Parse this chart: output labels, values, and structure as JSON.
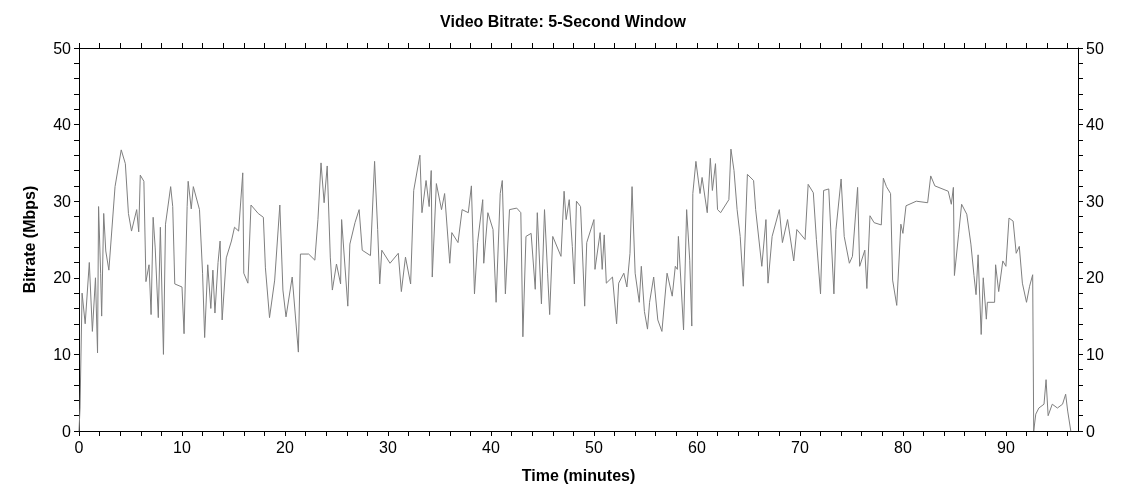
{
  "chart_data": {
    "type": "line",
    "title": "Video Bitrate: 5-Second Window",
    "xlabel": "Time (minutes)",
    "ylabel": "Bitrate (Mbps)",
    "x": [
      0,
      0.1,
      0.3,
      0.6,
      1.0,
      1.3,
      1.6,
      1.8,
      1.9,
      2.1,
      2.2,
      2.4,
      2.6,
      2.9,
      3.5,
      4.1,
      4.5,
      4.8,
      5.1,
      5.6,
      5.8,
      5.95,
      6.3,
      6.5,
      6.8,
      7.0,
      7.2,
      7.4,
      7.7,
      7.9,
      8.2,
      8.4,
      8.9,
      9.1,
      9.3,
      10.0,
      10.2,
      10.5,
      10.6,
      10.9,
      11.1,
      11.7,
      12.0,
      12.2,
      12.5,
      12.8,
      13.0,
      13.2,
      13.5,
      13.7,
      13.9,
      14.3,
      14.8,
      15.1,
      15.5,
      15.9,
      16.0,
      16.4,
      16.7,
      17.4,
      17.9,
      18.1,
      18.5,
      19.0,
      19.5,
      19.8,
      20.1,
      20.7,
      21.3,
      21.5,
      22.3,
      22.9,
      23.2,
      23.5,
      23.8,
      24.1,
      24.4,
      24.6,
      25.0,
      25.4,
      25.5,
      26.1,
      26.3,
      26.8,
      27.2,
      27.5,
      28.3,
      28.7,
      29.0,
      29.2,
      29.4,
      30.2,
      31.0,
      31.3,
      31.7,
      32.2,
      32.5,
      33.1,
      33.3,
      33.7,
      34.0,
      34.2,
      34.3,
      34.7,
      35.2,
      35.5,
      36.0,
      36.2,
      36.8,
      37.2,
      37.8,
      38.1,
      38.4,
      38.7,
      39.2,
      39.3,
      39.7,
      40.2,
      40.5,
      40.9,
      41.1,
      41.4,
      41.8,
      42.5,
      42.9,
      43.1,
      43.4,
      43.9,
      44.3,
      44.5,
      44.9,
      45.2,
      45.5,
      45.7,
      46.0,
      46.8,
      47.1,
      47.3,
      47.6,
      47.9,
      48.1,
      48.3,
      48.7,
      49.1,
      49.3,
      50.0,
      50.1,
      50.6,
      50.8,
      51.0,
      51.2,
      51.8,
      52.2,
      52.4,
      52.9,
      53.2,
      53.5,
      53.7,
      54.0,
      54.4,
      54.6,
      54.9,
      55.2,
      55.4,
      55.8,
      56.2,
      56.6,
      57.1,
      57.6,
      57.9,
      58.1,
      58.2,
      58.7,
      59.0,
      59.3,
      59.5,
      59.6,
      59.9,
      60.3,
      60.5,
      61.0,
      61.3,
      61.5,
      61.8,
      62.0,
      62.3,
      63.1,
      63.3,
      63.6,
      63.9,
      64.2,
      64.5,
      64.9,
      65.5,
      65.7,
      66.3,
      66.7,
      66.9,
      67.3,
      68.0,
      68.3,
      68.8,
      69.4,
      69.7,
      70.5,
      70.8,
      71.3,
      71.6,
      72.0,
      72.3,
      72.8,
      73.3,
      73.5,
      74.0,
      74.3,
      74.8,
      75.1,
      75.6,
      75.8,
      76.3,
      76.5,
      76.8,
      77.2,
      77.9,
      78.1,
      78.4,
      78.8,
      79.0,
      79.4,
      79.8,
      80.0,
      80.3,
      81.3,
      82.4,
      82.7,
      83.1,
      84.4,
      84.7,
      84.9,
      85.0,
      85.4,
      85.7,
      86.2,
      86.6,
      86.9,
      87.1,
      87.3,
      87.6,
      87.8,
      88.1,
      88.2,
      88.9,
      89.0,
      89.3,
      89.7,
      90.0,
      90.3,
      90.7,
      91.0,
      91.3,
      91.6,
      92.0,
      92.3,
      92.6,
      92.7,
      92.9,
      93.2,
      93.7,
      93.9,
      94.1,
      94.5,
      95.0,
      95.5,
      95.8,
      96.0,
      96.3
    ],
    "series": [
      {
        "color": "#7f7f7f",
        "values": [
          0,
          3,
          18,
          14,
          22,
          13,
          20,
          10.2,
          29.3,
          20.6,
          15,
          28.4,
          23.5,
          21,
          31.9,
          36.7,
          34.9,
          28.4,
          26.1,
          28.9,
          26,
          33.4,
          32.6,
          19.5,
          21.7,
          15.2,
          27.9,
          23.9,
          14.8,
          26.6,
          10,
          27,
          31.9,
          29.3,
          19.2,
          18.8,
          12.7,
          29.3,
          32.6,
          29,
          31.9,
          28.9,
          20.6,
          12.2,
          21.7,
          16,
          21,
          15.4,
          22,
          24.8,
          14.5,
          22.6,
          24.8,
          26.6,
          26.1,
          33.7,
          20.6,
          19.3,
          29.5,
          28.4,
          27.9,
          21.3,
          14.8,
          19.7,
          29.5,
          18.4,
          14.9,
          20.1,
          10.3,
          23.1,
          23.1,
          22.3,
          27.6,
          35,
          29.8,
          34.6,
          22.7,
          18.4,
          21.8,
          19.2,
          27.6,
          16.3,
          24.4,
          27.2,
          28.9,
          23.6,
          22.9,
          35.2,
          26.3,
          19.2,
          23.6,
          21.9,
          23.2,
          18.2,
          22.7,
          19.2,
          31.4,
          36,
          28.5,
          32.7,
          29.3,
          34,
          20.1,
          32.3,
          28.9,
          31,
          21.9,
          25.9,
          24.6,
          28.9,
          28.5,
          32,
          17.9,
          24.6,
          30.2,
          21.9,
          28.5,
          26.3,
          16.8,
          31,
          32.7,
          17.9,
          28.9,
          29.1,
          28.5,
          12.3,
          25.4,
          25.8,
          18.5,
          28.5,
          16.6,
          28.9,
          20.6,
          15.2,
          25.4,
          22.8,
          31.3,
          27.6,
          30.2,
          24.1,
          19.2,
          30,
          29.3,
          16.3,
          24.6,
          27.6,
          21.1,
          25.9,
          21.1,
          25.6,
          19.3,
          20.1,
          14,
          19.3,
          20.6,
          18.8,
          23.2,
          31.9,
          20.6,
          16.8,
          21.5,
          15.6,
          13.3,
          16.8,
          20.1,
          14.5,
          13,
          20.6,
          17.6,
          21.5,
          21.1,
          25.4,
          13.2,
          28.9,
          22.3,
          13.7,
          31,
          35.2,
          31,
          33.1,
          28.5,
          35.6,
          31.4,
          34.9,
          28.9,
          28.5,
          30.2,
          36.8,
          34,
          28.9,
          25.4,
          18.9,
          33.5,
          32.7,
          28.9,
          21.5,
          27.6,
          19.3,
          25.4,
          28.9,
          24.6,
          27.6,
          22.2,
          26.3,
          25,
          32.2,
          31.1,
          25,
          17.9,
          31.4,
          31.6,
          17.9,
          26.3,
          32.9,
          25.4,
          21.9,
          22.8,
          31.8,
          21.5,
          23.6,
          18.6,
          28.1,
          27.2,
          26.9,
          33,
          31.9,
          31,
          19.7,
          16.4,
          27,
          25.8,
          29.4,
          30,
          29.8,
          33.3,
          32,
          31.3,
          29.6,
          31.8,
          20.3,
          25.6,
          29.6,
          28.3,
          24.4,
          20.3,
          17.8,
          23,
          12.6,
          20,
          14.6,
          16.8,
          16.8,
          21.7,
          18.2,
          22.2,
          21.5,
          27.8,
          27.4,
          23.2,
          24.1,
          19.3,
          16.8,
          18.9,
          20.4,
          0,
          2.2,
          3,
          3.5,
          6.7,
          2,
          3.5,
          3,
          3.5,
          4.8,
          2.6,
          0
        ]
      }
    ],
    "xlim": [
      0,
      97
    ],
    "xticks": [
      0,
      {
        "value": 2,
        "label": null
      },
      {
        "value": 4,
        "label": null
      },
      {
        "value": 6,
        "label": null
      },
      {
        "value": 8,
        "label": null
      },
      10,
      {
        "value": 12,
        "label": null
      },
      {
        "value": 14,
        "label": null
      },
      {
        "value": 16,
        "label": null
      },
      {
        "value": 18,
        "label": null
      },
      20,
      {
        "value": 22,
        "label": null
      },
      {
        "value": 24,
        "label": null
      },
      {
        "value": 26,
        "label": null
      },
      {
        "value": 28,
        "label": null
      },
      30,
      {
        "value": 32,
        "label": null
      },
      {
        "value": 34,
        "label": null
      },
      {
        "value": 36,
        "label": null
      },
      {
        "value": 38,
        "label": null
      },
      40,
      {
        "value": 42,
        "label": null
      },
      {
        "value": 44,
        "label": null
      },
      {
        "value": 46,
        "label": null
      },
      {
        "value": 48,
        "label": null
      },
      50,
      {
        "value": 52,
        "label": null
      },
      {
        "value": 54,
        "label": null
      },
      {
        "value": 56,
        "label": null
      },
      {
        "value": 58,
        "label": null
      },
      60,
      {
        "value": 62,
        "label": null
      },
      {
        "value": 64,
        "label": null
      },
      {
        "value": 66,
        "label": null
      },
      {
        "value": 68,
        "label": null
      },
      70,
      {
        "value": 72,
        "label": null
      },
      {
        "value": 74,
        "label": null
      },
      {
        "value": 76,
        "label": null
      },
      {
        "value": 78,
        "label": null
      },
      80,
      {
        "value": 82,
        "label": null
      },
      {
        "value": 84,
        "label": null
      },
      {
        "value": 86,
        "label": null
      },
      {
        "value": 88,
        "label": null
      },
      90,
      {
        "value": 92,
        "label": null
      },
      {
        "value": 94,
        "label": null
      },
      {
        "value": 96,
        "label": null
      }
    ],
    "ylim": [
      0,
      50
    ],
    "yticks": [
      0,
      {
        "value": 2,
        "label": null
      },
      {
        "value": 4,
        "label": null
      },
      {
        "value": 6,
        "label": null
      },
      {
        "value": 8,
        "label": null
      },
      10,
      {
        "value": 12,
        "label": null
      },
      {
        "value": 14,
        "label": null
      },
      {
        "value": 16,
        "label": null
      },
      {
        "value": 18,
        "label": null
      },
      20,
      {
        "value": 22,
        "label": null
      },
      {
        "value": 24,
        "label": null
      },
      {
        "value": 26,
        "label": null
      },
      {
        "value": 28,
        "label": null
      },
      30,
      {
        "value": 32,
        "label": null
      },
      {
        "value": 34,
        "label": null
      },
      {
        "value": 36,
        "label": null
      },
      {
        "value": 38,
        "label": null
      },
      40,
      {
        "value": 42,
        "label": null
      },
      {
        "value": 44,
        "label": null
      },
      {
        "value": 46,
        "label": null
      },
      {
        "value": 48,
        "label": null
      },
      50
    ],
    "y2lim": [
      0,
      50
    ],
    "y2ticks": [
      0,
      {
        "value": 2,
        "label": null
      },
      {
        "value": 4,
        "label": null
      },
      {
        "value": 6,
        "label": null
      },
      {
        "value": 8,
        "label": null
      },
      10,
      {
        "value": 12,
        "label": null
      },
      {
        "value": 14,
        "label": null
      },
      {
        "value": 16,
        "label": null
      },
      {
        "value": 18,
        "label": null
      },
      20,
      {
        "value": 22,
        "label": null
      },
      {
        "value": 24,
        "label": null
      },
      {
        "value": 26,
        "label": null
      },
      {
        "value": 28,
        "label": null
      },
      30,
      {
        "value": 32,
        "label": null
      },
      {
        "value": 34,
        "label": null
      },
      {
        "value": 36,
        "label": null
      },
      {
        "value": 38,
        "label": null
      },
      40,
      {
        "value": 42,
        "label": null
      },
      {
        "value": 44,
        "label": null
      },
      {
        "value": 46,
        "label": null
      },
      {
        "value": 48,
        "label": null
      },
      50
    ],
    "grid": false,
    "marker": "none",
    "line_style": "solid"
  }
}
